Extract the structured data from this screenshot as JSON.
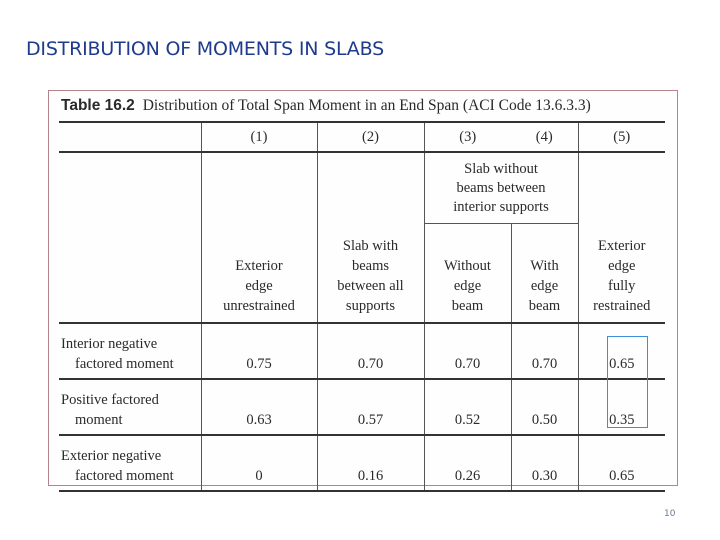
{
  "slide": {
    "title": "DISTRIBUTION OF MOMENTS IN SLABS",
    "page_number": "10"
  },
  "table": {
    "caption_number": "Table 16.2",
    "caption_text": "Distribution of Total Span Moment in an End Span (ACI Code 13.6.3.3)",
    "col_numbers": [
      "(1)",
      "(2)",
      "(3)",
      "(4)",
      "(5)"
    ],
    "group_header": [
      "Slab without",
      "beams between",
      "interior supports"
    ],
    "headers": {
      "c1": [
        "Exterior",
        "edge",
        "unrestrained"
      ],
      "c2": [
        "Slab with",
        "beams",
        "between all",
        "supports"
      ],
      "c3": [
        "Without",
        "edge",
        "beam"
      ],
      "c4": [
        "With",
        "edge",
        "beam"
      ],
      "c5": [
        "Exterior",
        "edge",
        "fully",
        "restrained"
      ]
    },
    "rows": [
      {
        "label_1": "Interior negative",
        "label_2": "factored moment",
        "values": [
          "0.75",
          "0.70",
          "0.70",
          "0.70",
          "0.65"
        ]
      },
      {
        "label_1": "Positive factored",
        "label_2": "moment",
        "values": [
          "0.63",
          "0.57",
          "0.52",
          "0.50",
          "0.35"
        ]
      },
      {
        "label_1": "Exterior negative",
        "label_2": "factored moment",
        "values": [
          "0",
          "0.16",
          "0.26",
          "0.30",
          "0.65"
        ]
      }
    ],
    "highlight_color": "#3a8fd8",
    "title_color": "#1f3b8c"
  }
}
